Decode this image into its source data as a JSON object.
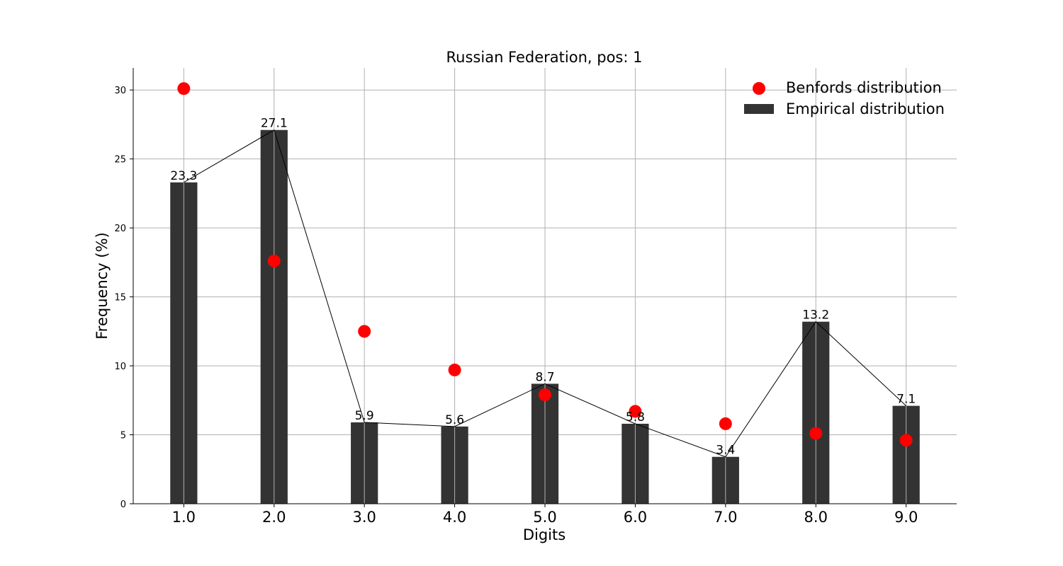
{
  "chart_data": {
    "type": "bar",
    "title": "Russian Federation, pos: 1",
    "xlabel": "Digits",
    "ylabel": "Frequency (%)",
    "categories": [
      "1.0",
      "2.0",
      "3.0",
      "4.0",
      "5.0",
      "6.0",
      "7.0",
      "8.0",
      "9.0"
    ],
    "x": [
      1,
      2,
      3,
      4,
      5,
      6,
      7,
      8,
      9
    ],
    "ylim": [
      0,
      31.6
    ],
    "xlim": [
      0.44,
      9.56
    ],
    "yticks": [
      0,
      5,
      10,
      15,
      20,
      25,
      30
    ],
    "grid": true,
    "legend_position": "top-right",
    "series": [
      {
        "name": "Empirical distribution",
        "kind": "bar",
        "color": "#333333",
        "values": [
          23.3,
          27.1,
          5.9,
          5.6,
          8.7,
          5.8,
          3.4,
          13.2,
          7.1
        ],
        "labels": [
          "23.3",
          "27.1",
          "5.9",
          "5.6",
          "8.7",
          "5.8",
          "3.4",
          "13.2",
          "7.1"
        ],
        "connecting_line": true
      },
      {
        "name": "Benfords distribution",
        "kind": "scatter",
        "color": "#ff0000",
        "values": [
          30.1,
          17.6,
          12.5,
          9.7,
          7.9,
          6.7,
          5.8,
          5.1,
          4.6
        ]
      }
    ]
  }
}
